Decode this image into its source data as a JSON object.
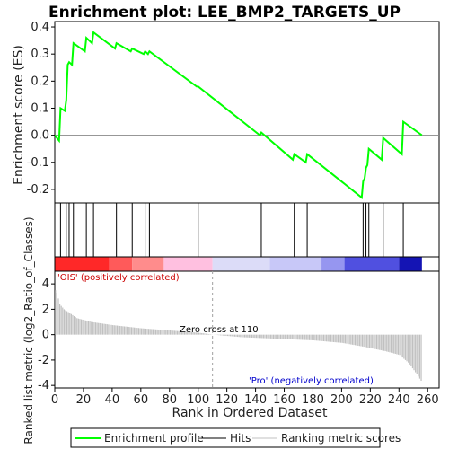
{
  "chart_data": {
    "type": "line",
    "title": "Enrichment plot: LEE_BMP2_TARGETS_UP",
    "xlabel": "Rank in Ordered Dataset",
    "es_ylabel": "Enrichment score (ES)",
    "metric_ylabel": "Ranked list metric (log2_Ratio_of_Classes)",
    "xlim": [
      0,
      268
    ],
    "es_ylim": [
      -0.25,
      0.42
    ],
    "metric_ylim": [
      -4.2,
      5.0
    ],
    "x_ticks": [
      0,
      20,
      40,
      60,
      80,
      100,
      120,
      140,
      160,
      180,
      200,
      220,
      240,
      260
    ],
    "x_tick_labels": [
      "0",
      "20",
      "40",
      "60",
      "80",
      "100",
      "120",
      "140",
      "160",
      "180",
      "200",
      "220",
      "240",
      "260"
    ],
    "es_ticks": [
      0.4,
      0.3,
      0.2,
      0.1,
      0.0,
      -0.1,
      -0.2
    ],
    "es_tick_labels": [
      "0.4",
      "0.3",
      "0.2",
      "0.1",
      "0.0",
      "-0.1",
      "-0.2"
    ],
    "metric_ticks": [
      4,
      2,
      0,
      -2,
      -4
    ],
    "metric_tick_labels": [
      "4",
      "2",
      "0",
      "-2",
      "-4"
    ],
    "grid": false,
    "series": [
      {
        "name": "Enrichment profile",
        "color": "#00ff00",
        "x": [
          0,
          3,
          4,
          7,
          8,
          9,
          10,
          12,
          13,
          21,
          22,
          26,
          27,
          42,
          43,
          53,
          54,
          62,
          63,
          65,
          66,
          99,
          100,
          143,
          144,
          166,
          167,
          175,
          176,
          214,
          215,
          216,
          217,
          218,
          219,
          228,
          229,
          242,
          243,
          256
        ],
        "y": [
          0.0,
          -0.02,
          0.1,
          0.09,
          0.13,
          0.26,
          0.27,
          0.26,
          0.34,
          0.31,
          0.36,
          0.34,
          0.38,
          0.32,
          0.34,
          0.31,
          0.32,
          0.3,
          0.31,
          0.3,
          0.31,
          0.18,
          0.18,
          0.0,
          0.01,
          -0.09,
          -0.07,
          -0.1,
          -0.07,
          -0.23,
          -0.17,
          -0.16,
          -0.12,
          -0.11,
          -0.05,
          -0.09,
          -0.01,
          -0.07,
          0.05,
          0.0
        ]
      }
    ],
    "hits": [
      4,
      8,
      10,
      13,
      22,
      27,
      43,
      54,
      63,
      66,
      100,
      144,
      167,
      176,
      215,
      217,
      219,
      229,
      243
    ],
    "heatmap_bands": [
      {
        "from": 0,
        "to": 38,
        "color": "#ff2828"
      },
      {
        "from": 38,
        "to": 54,
        "color": "#ff5a5a"
      },
      {
        "from": 54,
        "to": 76,
        "color": "#ff8c8c"
      },
      {
        "from": 76,
        "to": 110,
        "color": "#ffc0e0"
      },
      {
        "from": 110,
        "to": 150,
        "color": "#dcdcf8"
      },
      {
        "from": 150,
        "to": 186,
        "color": "#c8c8f8"
      },
      {
        "from": 186,
        "to": 202,
        "color": "#9696f0"
      },
      {
        "from": 202,
        "to": 240,
        "color": "#5050e0"
      },
      {
        "from": 240,
        "to": 256,
        "color": "#1414b4"
      }
    ],
    "metric": {
      "n": 256,
      "zero_cross": 110,
      "color": "#c0c0c0",
      "positive_anchors": [
        [
          0,
          3.5
        ],
        [
          1,
          3.3
        ],
        [
          3,
          2.4
        ],
        [
          6,
          2.0
        ],
        [
          10,
          1.7
        ],
        [
          15,
          1.3
        ],
        [
          25,
          1.0
        ],
        [
          40,
          0.75
        ],
        [
          60,
          0.5
        ],
        [
          80,
          0.33
        ],
        [
          100,
          0.15
        ],
        [
          110,
          0.0
        ]
      ],
      "negative_anchors": [
        [
          110,
          0.0
        ],
        [
          130,
          -0.2
        ],
        [
          160,
          -0.35
        ],
        [
          180,
          -0.45
        ],
        [
          200,
          -0.65
        ],
        [
          215,
          -0.95
        ],
        [
          230,
          -1.3
        ],
        [
          240,
          -1.6
        ],
        [
          246,
          -2.2
        ],
        [
          250,
          -2.8
        ],
        [
          253,
          -3.3
        ],
        [
          256,
          -3.8
        ]
      ]
    },
    "annotations": {
      "positive_label": "'OIS' (positively correlated)",
      "negative_label": "'Pro' (negatively correlated)",
      "zero_cross_label": "Zero cross at 110"
    },
    "legend": {
      "placement": "bottom",
      "items": [
        {
          "label": "Enrichment profile",
          "color": "#00ff00",
          "style": "line"
        },
        {
          "label": "Hits",
          "color": "#000000",
          "style": "line"
        },
        {
          "label": "Ranking metric scores",
          "color": "#c0c0c0",
          "style": "line"
        }
      ]
    }
  }
}
